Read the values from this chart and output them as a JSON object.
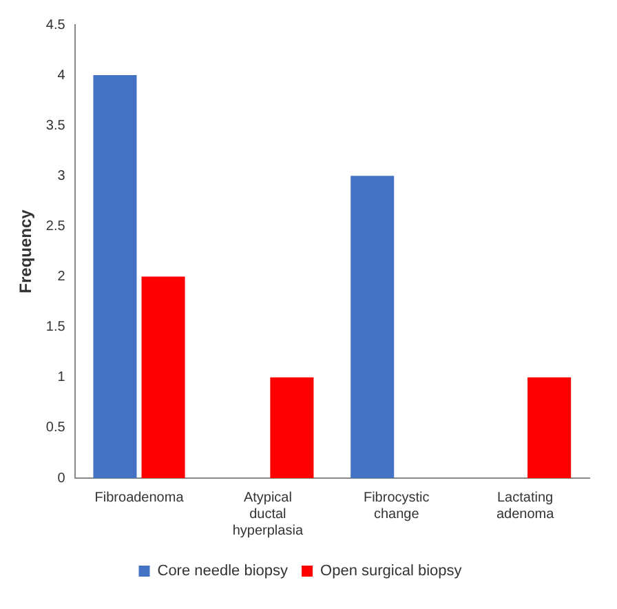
{
  "chart_data": {
    "type": "bar",
    "ylabel": "Frequency",
    "categories": [
      "Fibroadenoma",
      "Atypical ductal hyperplasia",
      "Fibrocystic change",
      "Lactating adenoma"
    ],
    "series": [
      {
        "name": "Core needle biopsy",
        "color": "#4472c4",
        "values": [
          4,
          0,
          3,
          0
        ]
      },
      {
        "name": "Open surgical biopsy",
        "color": "#ff0000",
        "values": [
          2,
          1,
          0,
          1
        ]
      }
    ],
    "ylim": [
      0,
      4.5
    ],
    "yticks": [
      0,
      0.5,
      1,
      1.5,
      2,
      2.5,
      3,
      3.5,
      4,
      4.5
    ],
    "grid": false,
    "legend": "bottom"
  }
}
